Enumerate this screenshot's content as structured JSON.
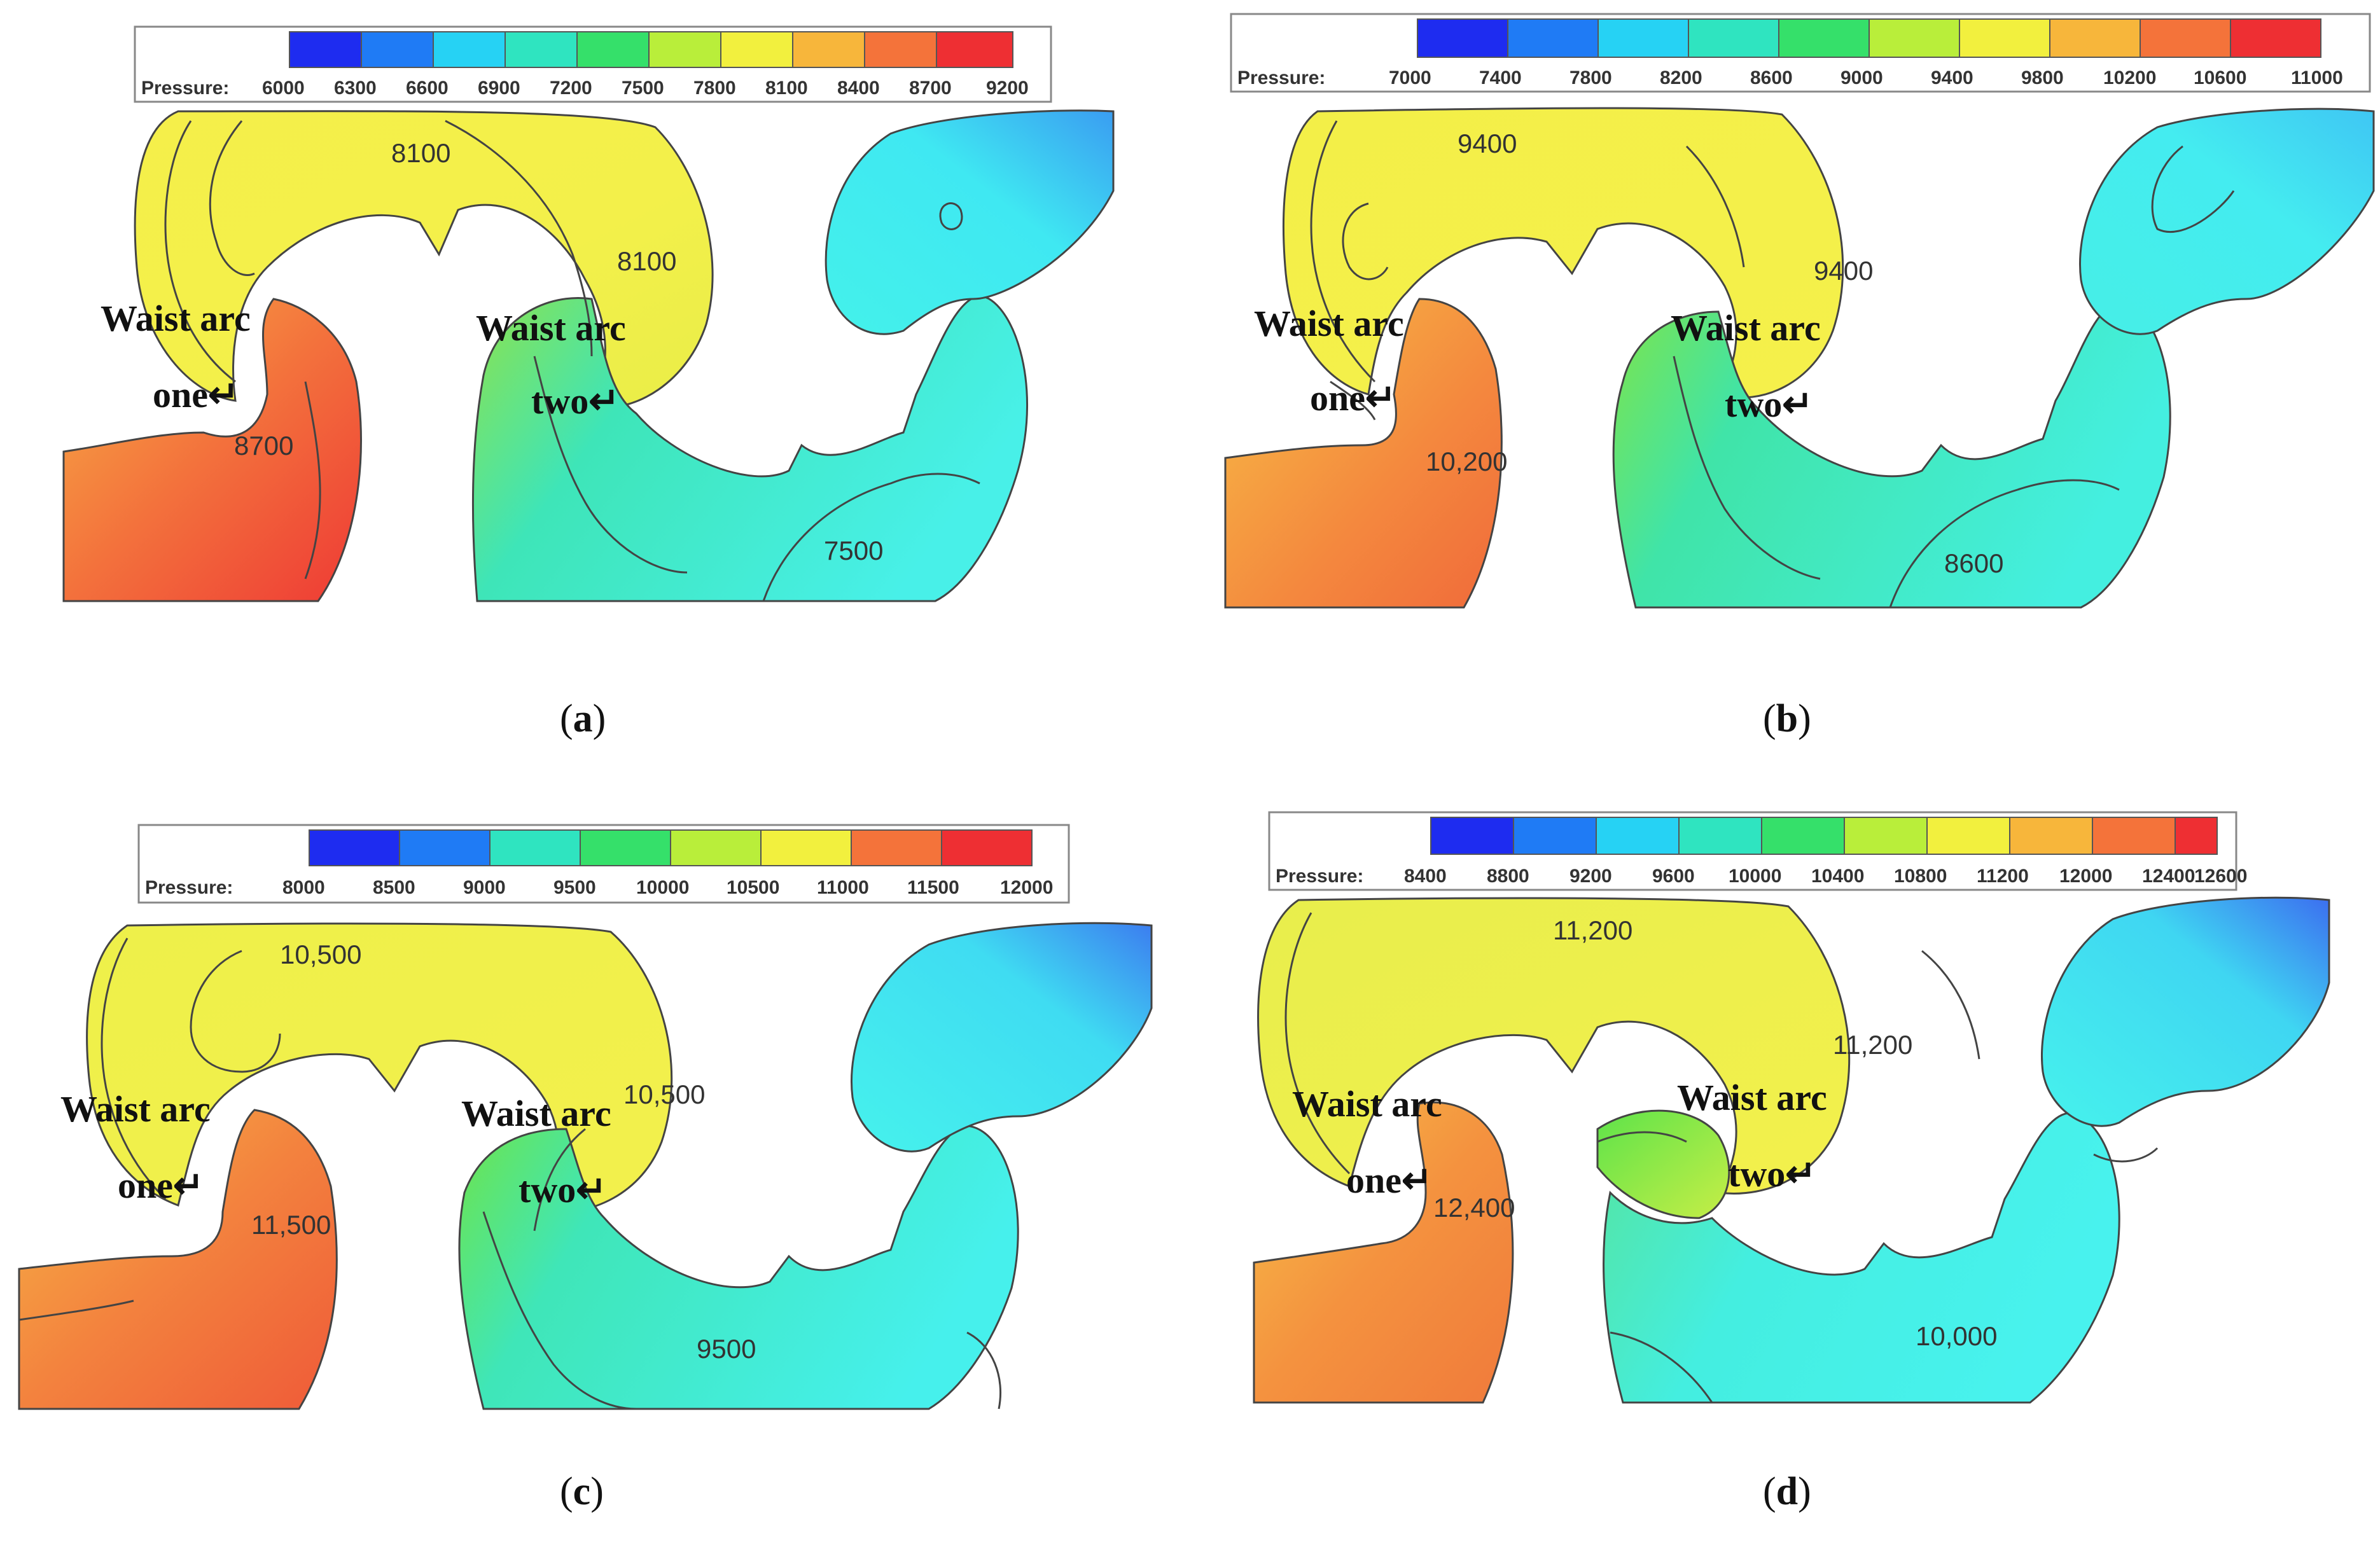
{
  "figure": {
    "panels": [
      {
        "id": "a",
        "label_letter": "a",
        "legend": {
          "title": "Pressure:",
          "ticks": [
            "6000",
            "6300",
            "6600",
            "6900",
            "7200",
            "7500",
            "7800",
            "8100",
            "8400",
            "8700",
            "9200"
          ]
        },
        "contour_labels": [
          "8100",
          "8100",
          "8700",
          "7500"
        ],
        "arc_labels": {
          "arc1_line1": "Waist arc",
          "arc1_line2": "one↵",
          "arc2_line1": "Waist arc",
          "arc2_line2": "two↵"
        }
      },
      {
        "id": "b",
        "label_letter": "b",
        "legend": {
          "title": "Pressure:",
          "ticks": [
            "7000",
            "7400",
            "7800",
            "8200",
            "8600",
            "9000",
            "9400",
            "9800",
            "10200",
            "10600",
            "11000"
          ]
        },
        "contour_labels": [
          "9400",
          "9400",
          "10,200",
          "8600"
        ],
        "arc_labels": {
          "arc1_line1": "Waist arc",
          "arc1_line2": "one↵",
          "arc2_line1": "Waist arc",
          "arc2_line2": "two↵"
        }
      },
      {
        "id": "c",
        "label_letter": "c",
        "legend": {
          "title": "Pressure:",
          "ticks": [
            "8000",
            "8500",
            "9000",
            "9500",
            "10000",
            "10500",
            "11000",
            "11500",
            "12000"
          ]
        },
        "contour_labels": [
          "10,500",
          "10,500",
          "11,500",
          "9500"
        ],
        "arc_labels": {
          "arc1_line1": "Waist arc",
          "arc1_line2": "one↵",
          "arc2_line1": "Waist arc",
          "arc2_line2": "two↵"
        }
      },
      {
        "id": "d",
        "label_letter": "d",
        "legend": {
          "title": "Pressure:",
          "ticks": [
            "8400",
            "8800",
            "9200",
            "9600",
            "10000",
            "10400",
            "10800",
            "11200",
            "12000",
            "12400",
            "12600"
          ]
        },
        "contour_labels": [
          "11,200",
          "11,200",
          "12,400",
          "10,000"
        ],
        "arc_labels": {
          "arc1_line1": "Waist arc",
          "arc1_line2": "one↵",
          "arc2_line1": "Waist arc",
          "arc2_line2": "two↵"
        }
      }
    ],
    "colormap": [
      "#1e2cf0",
      "#1f7bf5",
      "#26d2f4",
      "#2fe4c0",
      "#35e06a",
      "#62e335",
      "#b9ee3a",
      "#f2f03e",
      "#f7b63b",
      "#f4733a",
      "#ee2f33"
    ]
  }
}
